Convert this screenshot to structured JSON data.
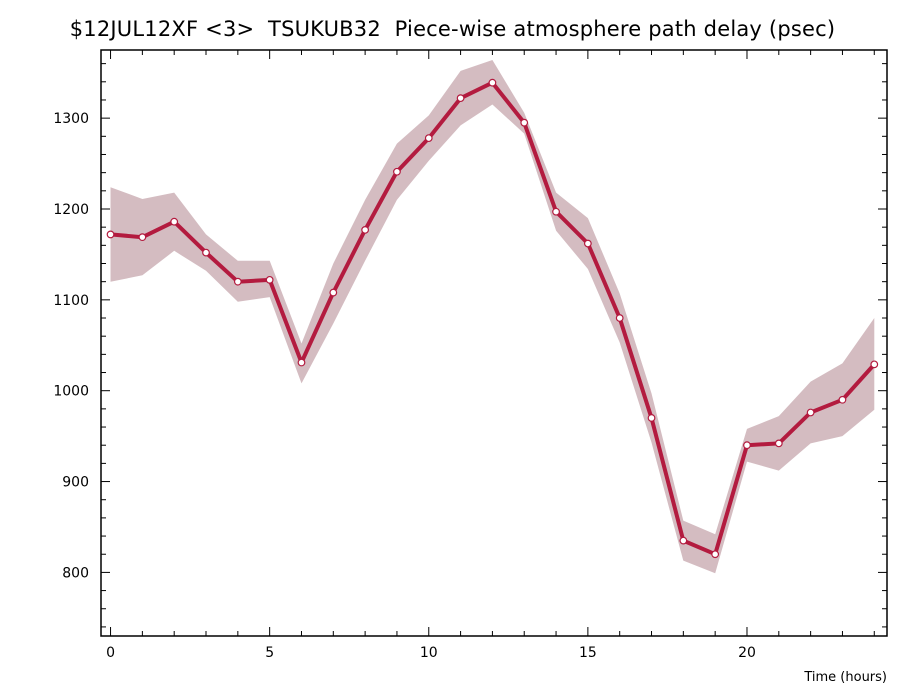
{
  "chart_data": {
    "type": "line",
    "title": "$12JUL12XF <3>  TSUKUB32  Piece-wise atmosphere path delay (psec)",
    "xlabel": "Time (hours)",
    "ylabel": "",
    "xlim": [
      -0.3,
      24.4
    ],
    "ylim": [
      730,
      1375
    ],
    "xticks": [
      0,
      5,
      10,
      15,
      20
    ],
    "yticks": [
      800,
      900,
      1000,
      1100,
      1200,
      1300
    ],
    "grid": false,
    "series": [
      {
        "x": [
          0,
          1,
          2,
          3,
          4,
          5,
          6,
          7,
          8,
          9,
          10,
          11,
          12,
          13,
          14,
          15,
          16,
          17,
          18,
          19,
          20,
          21,
          22,
          23,
          24
        ],
        "values": [
          1172,
          1169,
          1186,
          1152,
          1120,
          1122,
          1031,
          1108,
          1177,
          1241,
          1278,
          1322,
          1339,
          1295,
          1197,
          1162,
          1080,
          970,
          835,
          820,
          940,
          942,
          976,
          990,
          1029
        ],
        "upper": [
          1224,
          1211,
          1218,
          1172,
          1143,
          1143,
          1052,
          1140,
          1210,
          1272,
          1303,
          1352,
          1364,
          1306,
          1218,
          1190,
          1107,
          997,
          857,
          842,
          958,
          972,
          1010,
          1030,
          1080
        ],
        "lower": [
          1120,
          1127,
          1154,
          1132,
          1098,
          1103,
          1008,
          1074,
          1143,
          1210,
          1253,
          1292,
          1315,
          1283,
          1176,
          1134,
          1053,
          943,
          813,
          799,
          922,
          912,
          942,
          950,
          979
        ]
      }
    ],
    "colors": {
      "line": "#b31b3f",
      "band": "#d4bcc1",
      "marker_fill": "#ffffff",
      "axis": "#000000"
    }
  }
}
